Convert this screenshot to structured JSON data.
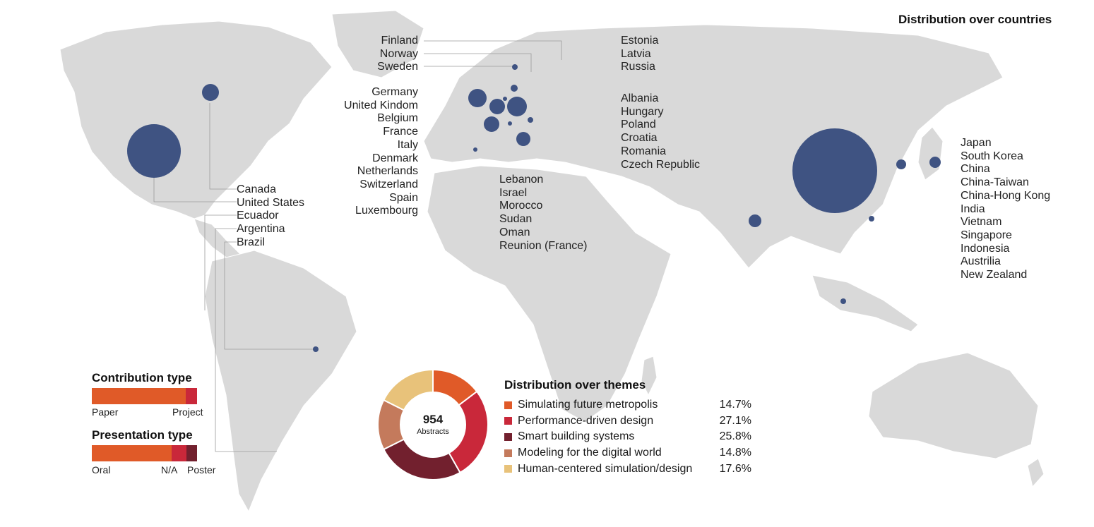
{
  "map": {
    "title": "Distribution over countries",
    "label_groups": {
      "nordic": [
        "Finland",
        "Norway",
        "Sweden"
      ],
      "baltic": [
        "Estonia",
        "Latvia",
        "Russia"
      ],
      "western_europe": [
        "Germany",
        "United Kindom",
        "Belgium",
        "France",
        "Italy",
        "Denmark",
        "Netherlands",
        "Switzerland",
        "Spain",
        "Luxembourg"
      ],
      "eastern_europe": [
        "Albania",
        "Hungary",
        "Poland",
        "Croatia",
        "Romania",
        "Czech Republic"
      ],
      "middle_east_africa": [
        "Lebanon",
        "Israel",
        "Morocco",
        "Sudan",
        "Oman",
        "Reunion (France)"
      ],
      "americas": [
        "Canada",
        "United States",
        "Ecuador",
        "Argentina",
        "Brazil"
      ],
      "asia_pacific": [
        "Japan",
        "South Korea",
        "China",
        "China-Taiwan",
        "China-Hong Kong",
        "India",
        "Vietnam",
        "Singapore",
        "Indonesia",
        "Austrilia",
        "New Zealand"
      ]
    },
    "colors": {
      "land": "#d9d9d9",
      "bubble": "#3f5382",
      "leader": "#9a9a9a"
    }
  },
  "chart_data": [
    {
      "type": "pie",
      "variant": "donut",
      "title": "Distribution over themes",
      "center_value": "954",
      "center_label": "Abstracts",
      "categories": [
        "Simulating future metropolis",
        "Performance-driven design",
        "Smart building systems",
        "Modeling for the digital world",
        "Human-centered simulation/design"
      ],
      "values": [
        14.7,
        27.1,
        25.8,
        14.8,
        17.6
      ],
      "labels": [
        "14.7%",
        "27.1%",
        "25.8%",
        "14.8%",
        "17.6%"
      ],
      "colors": [
        "#e05a28",
        "#c9283a",
        "#72202e",
        "#c47a5c",
        "#e8c27a"
      ],
      "legend": "right"
    },
    {
      "type": "bar",
      "variant": "stacked-horizontal",
      "title": "Contribution type",
      "categories": [
        "Paper",
        "Project"
      ],
      "values": [
        0.89,
        0.11
      ],
      "colors": [
        "#e05a28",
        "#c9283a"
      ]
    },
    {
      "type": "bar",
      "variant": "stacked-horizontal",
      "title": "Presentation type",
      "categories": [
        "Oral",
        "N/A",
        "Poster"
      ],
      "values": [
        0.76,
        0.14,
        0.1
      ],
      "colors": [
        "#e05a28",
        "#c9283a",
        "#72202e"
      ]
    }
  ]
}
